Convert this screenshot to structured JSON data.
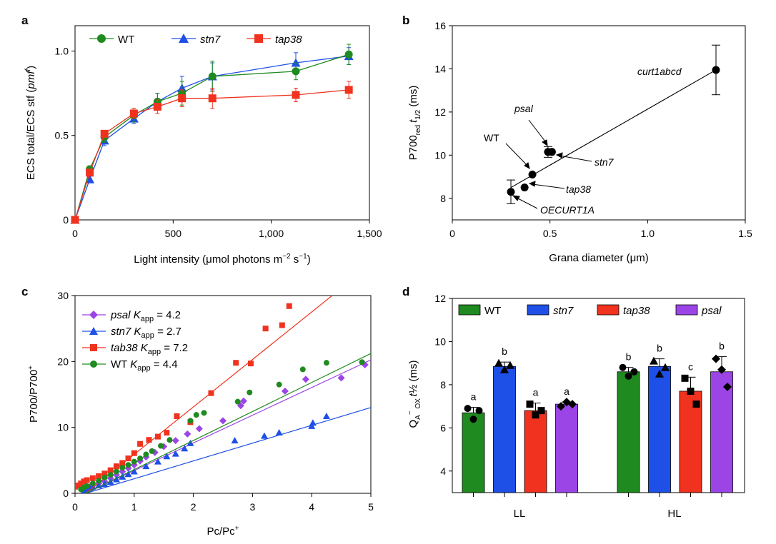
{
  "colors": {
    "WT": "#1f8a1f",
    "stn7": "#1e4fe6",
    "tap38": "#f0321e",
    "psal": "#9b45e6",
    "black": "#000000"
  },
  "chart_data": [
    {
      "panel": "a",
      "type": "line",
      "ylabel": "ECS total/ECS stf (pmf)",
      "ylabel_main": "ECS total/ECS stf (",
      "ylabel_italic": "pmf",
      "ylabel_end": ")",
      "xlabel": "Light intensity (μmol photons m−2 s−1)",
      "xlabel_main": "Light intensity (μmol photons m",
      "xlabel_sup1": "−2",
      "xlabel_mid": " s",
      "xlabel_sup2": "−1",
      "xlabel_end": ")",
      "xlim": [
        0,
        1500
      ],
      "ylim": [
        0,
        1.15
      ],
      "xticks": [
        0,
        500,
        1000,
        1500
      ],
      "xtick_labels": [
        "0",
        "500",
        "1,000",
        "1,500"
      ],
      "yticks": [
        0,
        0.5,
        1.0
      ],
      "ytick_labels": [
        "0",
        "0.5",
        "1.0"
      ],
      "series": [
        {
          "name": "WT",
          "x": [
            0,
            75,
            150,
            300,
            420,
            545,
            700,
            1125,
            1395
          ],
          "y": [
            0,
            0.3,
            0.49,
            0.62,
            0.7,
            0.75,
            0.85,
            0.88,
            0.98
          ],
          "err": [
            0,
            0.02,
            0.03,
            0.04,
            0.05,
            0.07,
            0.09,
            0.05,
            0.06
          ]
        },
        {
          "name": "stn7",
          "x": [
            0,
            75,
            150,
            300,
            420,
            545,
            700,
            1125,
            1395
          ],
          "y": [
            0,
            0.24,
            0.47,
            0.6,
            0.7,
            0.78,
            0.85,
            0.93,
            0.97
          ],
          "err": [
            0,
            0.02,
            0.03,
            0.03,
            0.05,
            0.07,
            0.08,
            0.06,
            0.05
          ]
        },
        {
          "name": "tap38",
          "x": [
            0,
            75,
            150,
            300,
            420,
            545,
            700,
            1125,
            1395
          ],
          "y": [
            0,
            0.28,
            0.51,
            0.63,
            0.67,
            0.72,
            0.72,
            0.74,
            0.77
          ],
          "err": [
            0,
            0.02,
            0.02,
            0.03,
            0.04,
            0.05,
            0.06,
            0.04,
            0.05
          ]
        }
      ],
      "legend": [
        "WT",
        "stn7",
        "tap38"
      ]
    },
    {
      "panel": "b",
      "type": "scatter",
      "xlabel": "Grana diameter (μm)",
      "ylabel": "P700red t1/2 (ms)",
      "ylabel_p1": "P700",
      "ylabel_sub1": "red",
      "ylabel_t": "t",
      "ylabel_sub2": "1/2",
      "ylabel_end": " (ms)",
      "xlim": [
        0,
        1.5
      ],
      "ylim": [
        7,
        16
      ],
      "xticks": [
        0,
        0.5,
        1.0,
        1.5
      ],
      "xtick_labels": [
        "0",
        "0.5",
        "1.0",
        "1.5"
      ],
      "yticks": [
        8,
        10,
        12,
        14,
        16
      ],
      "ytick_labels": [
        "8",
        "10",
        "12",
        "14",
        "16"
      ],
      "points": [
        {
          "label": "OECURT1A",
          "x": 0.3,
          "y": 8.3,
          "err": 0.55
        },
        {
          "label": "tap38",
          "x": 0.37,
          "y": 8.5,
          "err": 0.0
        },
        {
          "label": "WT",
          "x": 0.41,
          "y": 9.1,
          "err": 0.0
        },
        {
          "label": "psal",
          "x": 0.49,
          "y": 10.15,
          "err": 0.25
        },
        {
          "label": "stn7",
          "x": 0.51,
          "y": 10.15,
          "err": 0.0
        },
        {
          "label": "curt1abcd",
          "x": 1.35,
          "y": 13.95,
          "err": 1.15
        }
      ],
      "fit_line": {
        "x": [
          0.3,
          1.35
        ],
        "y": [
          8.5,
          13.95
        ]
      }
    },
    {
      "panel": "c",
      "type": "scatter",
      "xlabel": "Pc/Pc+",
      "xlabel_main": "Pc/Pc",
      "xlabel_sup": "+",
      "ylabel": "P700/P700+",
      "ylabel_main": "P700/P700",
      "ylabel_sup": "+",
      "xlim": [
        0,
        5
      ],
      "ylim": [
        0,
        30
      ],
      "xticks": [
        0,
        1,
        2,
        3,
        4,
        5
      ],
      "xtick_labels": [
        "0",
        "1",
        "2",
        "3",
        "4",
        "5"
      ],
      "yticks": [
        0,
        10,
        20,
        30
      ],
      "ytick_labels": [
        "0",
        "10",
        "20",
        "30"
      ],
      "series": [
        {
          "name": "psal",
          "K_app": "4.2",
          "slope": 4.2,
          "x": [
            0.15,
            0.2,
            0.25,
            0.3,
            0.4,
            0.5,
            0.6,
            0.7,
            0.8,
            0.9,
            1.0,
            1.1,
            1.2,
            1.35,
            1.5,
            1.7,
            1.9,
            2.1,
            2.5,
            2.8,
            2.85,
            3.55,
            3.9,
            4.5,
            4.9
          ],
          "y": [
            0.5,
            0.8,
            1.0,
            1.2,
            1.5,
            1.8,
            2.3,
            2.8,
            3.3,
            3.8,
            4.3,
            4.9,
            5.5,
            6.2,
            7.1,
            8.0,
            9.0,
            9.8,
            11.0,
            13.3,
            14.0,
            15.5,
            17.3,
            17.5,
            19.5
          ]
        },
        {
          "name": "stn7",
          "K_app": "2.7",
          "slope": 2.7,
          "x": [
            0.15,
            0.2,
            0.25,
            0.3,
            0.4,
            0.5,
            0.6,
            0.7,
            0.8,
            0.9,
            1.0,
            1.2,
            1.4,
            1.55,
            1.7,
            1.85,
            1.95,
            2.7,
            3.2,
            3.45,
            4.0,
            4.02,
            4.25
          ],
          "y": [
            0.4,
            0.6,
            0.8,
            1.0,
            1.2,
            1.4,
            1.7,
            2.1,
            2.5,
            2.9,
            3.3,
            4.1,
            4.8,
            5.6,
            6.0,
            6.8,
            7.6,
            8.0,
            8.7,
            9.2,
            10.2,
            10.7,
            11.7
          ]
        },
        {
          "name": "tab38",
          "K_app": "7.2",
          "slope": 7.2,
          "x": [
            0,
            0.05,
            0.1,
            0.15,
            0.2,
            0.3,
            0.4,
            0.5,
            0.6,
            0.7,
            0.8,
            0.9,
            1.0,
            1.1,
            1.25,
            1.4,
            1.55,
            1.72,
            1.95,
            2.3,
            2.72,
            2.97,
            3.22,
            3.5,
            3.62
          ],
          "y": [
            1.0,
            1.2,
            1.5,
            1.8,
            2.0,
            2.3,
            2.6,
            3.0,
            3.5,
            4.1,
            4.6,
            5.3,
            6.1,
            7.5,
            8.1,
            8.6,
            9.2,
            11.7,
            10.8,
            15.2,
            19.8,
            19.7,
            25.0,
            25.5,
            28.4
          ]
        },
        {
          "name": "WT",
          "K_app": "4.4",
          "slope": 4.4,
          "x": [
            0.1,
            0.15,
            0.2,
            0.3,
            0.4,
            0.5,
            0.6,
            0.7,
            0.8,
            0.9,
            1.0,
            1.1,
            1.2,
            1.3,
            1.45,
            1.6,
            1.95,
            2.05,
            2.18,
            2.75,
            2.95,
            3.45,
            3.85,
            4.25,
            4.85
          ],
          "y": [
            0.6,
            0.9,
            1.1,
            1.5,
            1.9,
            2.4,
            2.8,
            3.3,
            3.9,
            4.3,
            4.8,
            5.3,
            5.9,
            6.4,
            7.2,
            8.1,
            11.0,
            11.9,
            12.2,
            13.9,
            15.3,
            16.5,
            18.8,
            19.8,
            19.9
          ]
        }
      ],
      "legend": [
        {
          "name": "psal",
          "K_app": "4.2"
        },
        {
          "name": "stn7",
          "K_app": "2.7"
        },
        {
          "name": "tab38",
          "K_app": "7.2"
        },
        {
          "name": "WT",
          "K_app": "4.4"
        }
      ],
      "legend_k": "K",
      "legend_app": "app",
      "legend_eq": " = "
    },
    {
      "panel": "d",
      "type": "bar",
      "ylabel": "QA− ox t½ (ms)",
      "ylabel_q": "Q",
      "ylabel_sub": "A",
      "ylabel_sup": "−",
      "ylabel_ox": " OX ",
      "ylabel_t": "t",
      "ylabel_half": "½",
      "ylabel_end": " (ms)",
      "ylim": [
        3,
        12
      ],
      "yticks": [
        4,
        6,
        8,
        10,
        12
      ],
      "ytick_labels": [
        "4",
        "6",
        "8",
        "10",
        "12"
      ],
      "groups": [
        "LL",
        "HL"
      ],
      "series": [
        {
          "name": "WT",
          "values": [
            6.7,
            8.6
          ],
          "err": [
            0.25,
            0.2
          ],
          "letters": [
            "a",
            "b"
          ],
          "points": [
            [
              6.9,
              6.4,
              6.8
            ],
            [
              8.8,
              8.4,
              8.6
            ]
          ],
          "marker": "circle"
        },
        {
          "name": "stn7",
          "values": [
            8.85,
            8.85
          ],
          "err": [
            0.2,
            0.35
          ],
          "letters": [
            "b",
            "b"
          ],
          "points": [
            [
              9.0,
              8.7,
              8.9
            ],
            [
              9.1,
              8.5,
              8.8
            ]
          ],
          "marker": "triangle"
        },
        {
          "name": "tap38",
          "values": [
            6.8,
            7.7
          ],
          "err": [
            0.35,
            0.65
          ],
          "letters": [
            "a",
            "c"
          ],
          "points": [
            [
              7.1,
              6.6,
              6.8
            ],
            [
              8.3,
              7.7,
              7.1
            ]
          ],
          "marker": "square"
        },
        {
          "name": "psal",
          "values": [
            7.1,
            8.6
          ],
          "err": [
            0.1,
            0.7
          ],
          "letters": [
            "a",
            "b"
          ],
          "points": [
            [
              7.0,
              7.2,
              7.1
            ],
            [
              9.2,
              8.7,
              7.9
            ]
          ],
          "marker": "diamond"
        }
      ],
      "legend": [
        "WT",
        "stn7",
        "tap38",
        "psal"
      ]
    }
  ],
  "panel_letters": [
    "a",
    "b",
    "c",
    "d"
  ],
  "annotations_b": [
    "curt1abcd",
    "psal",
    "WT",
    "stn7",
    "tap38",
    "OECURT1A"
  ]
}
